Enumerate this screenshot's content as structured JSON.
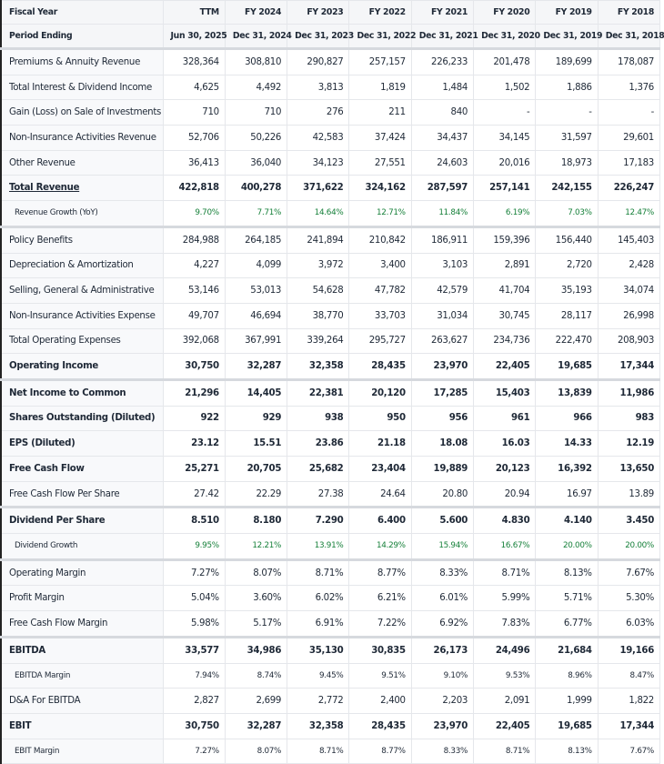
{
  "header": {
    "fiscal_year_label": "Fiscal Year",
    "period_ending_label": "Period Ending",
    "columns": [
      {
        "year": "TTM",
        "period": "Jun 30, 2025"
      },
      {
        "year": "FY 2024",
        "period": "Dec 31, 2024"
      },
      {
        "year": "FY 2023",
        "period": "Dec 31, 2023"
      },
      {
        "year": "FY 2022",
        "period": "Dec 31, 2022"
      },
      {
        "year": "FY 2021",
        "period": "Dec 31, 2021"
      },
      {
        "year": "FY 2020",
        "period": "Dec 31, 2020"
      },
      {
        "year": "FY 2019",
        "period": "Dec 31, 2019"
      },
      {
        "year": "FY 2018",
        "period": "Dec 31, 2018"
      }
    ]
  },
  "colors": {
    "growth": "#16803a",
    "label_bg": "#f8f9fb",
    "border": "#e5e7eb"
  },
  "rows": [
    {
      "label": "Premiums & Annuity Revenue",
      "values": [
        "328,364",
        "308,810",
        "290,827",
        "257,157",
        "226,233",
        "201,478",
        "189,699",
        "178,087"
      ]
    },
    {
      "label": "Total Interest & Dividend Income",
      "values": [
        "4,625",
        "4,492",
        "3,813",
        "1,819",
        "1,484",
        "1,502",
        "1,886",
        "1,376"
      ]
    },
    {
      "label": "Gain (Loss) on Sale of Investments",
      "values": [
        "710",
        "710",
        "276",
        "211",
        "840",
        "-",
        "-",
        "-"
      ]
    },
    {
      "label": "Non-Insurance Activities Revenue",
      "values": [
        "52,706",
        "50,226",
        "42,583",
        "37,424",
        "34,437",
        "34,145",
        "31,597",
        "29,601"
      ]
    },
    {
      "label": "Other Revenue",
      "values": [
        "36,413",
        "36,040",
        "34,123",
        "27,551",
        "24,603",
        "20,016",
        "18,973",
        "17,183"
      ]
    },
    {
      "label": "Total Revenue",
      "style": "bold underline",
      "values": [
        "422,818",
        "400,278",
        "371,622",
        "324,162",
        "287,597",
        "257,141",
        "242,155",
        "226,247"
      ]
    },
    {
      "label": "Revenue Growth (YoY)",
      "style": "sub green thick",
      "values": [
        "9.70%",
        "7.71%",
        "14.64%",
        "12.71%",
        "11.84%",
        "6.19%",
        "7.03%",
        "12.47%"
      ]
    },
    {
      "label": "Policy Benefits",
      "values": [
        "284,988",
        "264,185",
        "241,894",
        "210,842",
        "186,911",
        "159,396",
        "156,440",
        "145,403"
      ]
    },
    {
      "label": "Depreciation & Amortization",
      "values": [
        "4,227",
        "4,099",
        "3,972",
        "3,400",
        "3,103",
        "2,891",
        "2,720",
        "2,428"
      ]
    },
    {
      "label": "Selling, General & Administrative",
      "values": [
        "53,146",
        "53,013",
        "54,628",
        "47,782",
        "42,579",
        "41,704",
        "35,193",
        "34,074"
      ]
    },
    {
      "label": "Non-Insurance Activities Expense",
      "values": [
        "49,707",
        "46,694",
        "38,770",
        "33,703",
        "31,034",
        "30,745",
        "28,117",
        "26,998"
      ]
    },
    {
      "label": "Total Operating Expenses",
      "values": [
        "392,068",
        "367,991",
        "339,264",
        "295,727",
        "263,627",
        "234,736",
        "222,470",
        "208,903"
      ]
    },
    {
      "label": "Operating Income",
      "style": "bold thick",
      "values": [
        "30,750",
        "32,287",
        "32,358",
        "28,435",
        "23,970",
        "22,405",
        "19,685",
        "17,344"
      ]
    },
    {
      "label": "Net Income to Common",
      "style": "bold",
      "values": [
        "21,296",
        "14,405",
        "22,381",
        "20,120",
        "17,285",
        "15,403",
        "13,839",
        "11,986"
      ]
    },
    {
      "label": "Shares Outstanding (Diluted)",
      "style": "bold",
      "values": [
        "922",
        "929",
        "938",
        "950",
        "956",
        "961",
        "966",
        "983"
      ]
    },
    {
      "label": "EPS (Diluted)",
      "style": "bold",
      "values": [
        "23.12",
        "15.51",
        "23.86",
        "21.18",
        "18.08",
        "16.03",
        "14.33",
        "12.19"
      ]
    },
    {
      "label": "Free Cash Flow",
      "style": "bold",
      "values": [
        "25,271",
        "20,705",
        "25,682",
        "23,404",
        "19,889",
        "20,123",
        "16,392",
        "13,650"
      ]
    },
    {
      "label": "Free Cash Flow Per Share",
      "style": "thick",
      "values": [
        "27.42",
        "22.29",
        "27.38",
        "24.64",
        "20.80",
        "20.94",
        "16.97",
        "13.89"
      ]
    },
    {
      "label": "Dividend Per Share",
      "style": "bold",
      "values": [
        "8.510",
        "8.180",
        "7.290",
        "6.400",
        "5.600",
        "4.830",
        "4.140",
        "3.450"
      ]
    },
    {
      "label": "Dividend Growth",
      "style": "sub green thick",
      "values": [
        "9.95%",
        "12.21%",
        "13.91%",
        "14.29%",
        "15.94%",
        "16.67%",
        "20.00%",
        "20.00%"
      ]
    },
    {
      "label": "Operating Margin",
      "values": [
        "7.27%",
        "8.07%",
        "8.71%",
        "8.77%",
        "8.33%",
        "8.71%",
        "8.13%",
        "7.67%"
      ]
    },
    {
      "label": "Profit Margin",
      "values": [
        "5.04%",
        "3.60%",
        "6.02%",
        "6.21%",
        "6.01%",
        "5.99%",
        "5.71%",
        "5.30%"
      ]
    },
    {
      "label": "Free Cash Flow Margin",
      "style": "thick",
      "values": [
        "5.98%",
        "5.17%",
        "6.91%",
        "7.22%",
        "6.92%",
        "7.83%",
        "6.77%",
        "6.03%"
      ]
    },
    {
      "label": "EBITDA",
      "style": "bold",
      "values": [
        "33,577",
        "34,986",
        "35,130",
        "30,835",
        "26,173",
        "24,496",
        "21,684",
        "19,166"
      ]
    },
    {
      "label": "EBITDA Margin",
      "style": "sub",
      "values": [
        "7.94%",
        "8.74%",
        "9.45%",
        "9.51%",
        "9.10%",
        "9.53%",
        "8.96%",
        "8.47%"
      ]
    },
    {
      "label": "D&A For EBITDA",
      "values": [
        "2,827",
        "2,699",
        "2,772",
        "2,400",
        "2,203",
        "2,091",
        "1,999",
        "1,822"
      ]
    },
    {
      "label": "EBIT",
      "style": "bold",
      "values": [
        "30,750",
        "32,287",
        "32,358",
        "28,435",
        "23,970",
        "22,405",
        "19,685",
        "17,344"
      ]
    },
    {
      "label": "EBIT Margin",
      "style": "sub",
      "values": [
        "7.27%",
        "8.07%",
        "8.71%",
        "8.77%",
        "8.33%",
        "8.71%",
        "8.13%",
        "7.67%"
      ]
    }
  ]
}
